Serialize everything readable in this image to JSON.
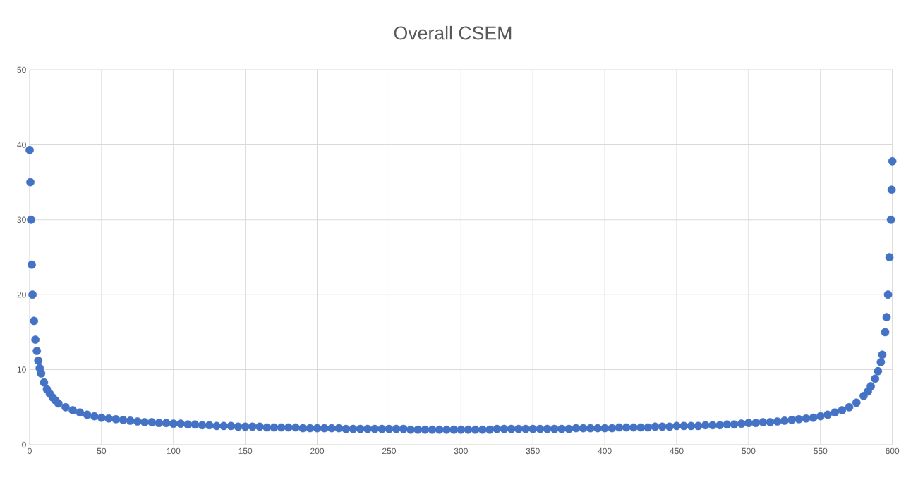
{
  "chart_data": {
    "type": "scatter",
    "title": "Overall CSEM",
    "x": [
      0,
      0.5,
      1,
      1.5,
      2,
      3,
      4,
      5,
      6,
      7,
      8,
      10,
      12,
      14,
      16,
      18,
      20,
      25,
      30,
      35,
      40,
      45,
      50,
      55,
      60,
      65,
      70,
      75,
      80,
      85,
      90,
      95,
      100,
      105,
      110,
      115,
      120,
      125,
      130,
      135,
      140,
      145,
      150,
      155,
      160,
      165,
      170,
      175,
      180,
      185,
      190,
      195,
      200,
      205,
      210,
      215,
      220,
      225,
      230,
      235,
      240,
      245,
      250,
      255,
      260,
      265,
      270,
      275,
      280,
      285,
      290,
      295,
      300,
      305,
      310,
      315,
      320,
      325,
      330,
      335,
      340,
      345,
      350,
      355,
      360,
      365,
      370,
      375,
      380,
      385,
      390,
      395,
      400,
      405,
      410,
      415,
      420,
      425,
      430,
      435,
      440,
      445,
      450,
      455,
      460,
      465,
      470,
      475,
      480,
      485,
      490,
      495,
      500,
      505,
      510,
      515,
      520,
      525,
      530,
      535,
      540,
      545,
      550,
      555,
      560,
      565,
      570,
      575,
      580,
      583,
      585,
      588,
      590,
      592,
      593,
      595,
      596,
      597,
      598,
      599,
      599.5,
      600
    ],
    "series": [
      {
        "color": "#4472c4",
        "values": [
          39.3,
          35,
          30,
          24,
          20,
          16.5,
          14,
          12.5,
          11.2,
          10.2,
          9.5,
          8.3,
          7.4,
          6.8,
          6.3,
          5.9,
          5.5,
          5.0,
          4.6,
          4.3,
          4.0,
          3.8,
          3.6,
          3.5,
          3.4,
          3.3,
          3.2,
          3.1,
          3.0,
          3.0,
          2.9,
          2.9,
          2.8,
          2.8,
          2.7,
          2.7,
          2.6,
          2.6,
          2.5,
          2.5,
          2.5,
          2.4,
          2.4,
          2.4,
          2.4,
          2.3,
          2.3,
          2.3,
          2.3,
          2.3,
          2.2,
          2.2,
          2.2,
          2.2,
          2.2,
          2.2,
          2.1,
          2.1,
          2.1,
          2.1,
          2.1,
          2.1,
          2.1,
          2.1,
          2.1,
          2.0,
          2.0,
          2.0,
          2.0,
          2.0,
          2.0,
          2.0,
          2.0,
          2.0,
          2.0,
          2.0,
          2.0,
          2.1,
          2.1,
          2.1,
          2.1,
          2.1,
          2.1,
          2.1,
          2.1,
          2.1,
          2.1,
          2.1,
          2.2,
          2.2,
          2.2,
          2.2,
          2.2,
          2.2,
          2.3,
          2.3,
          2.3,
          2.3,
          2.3,
          2.4,
          2.4,
          2.4,
          2.5,
          2.5,
          2.5,
          2.5,
          2.6,
          2.6,
          2.6,
          2.7,
          2.7,
          2.8,
          2.9,
          2.9,
          3.0,
          3.0,
          3.1,
          3.2,
          3.3,
          3.4,
          3.5,
          3.6,
          3.8,
          4.0,
          4.3,
          4.6,
          5.0,
          5.6,
          6.5,
          7.1,
          7.8,
          8.8,
          9.8,
          11,
          12,
          15,
          17,
          20,
          25,
          30,
          34,
          37.8
        ]
      }
    ],
    "xlim": [
      0,
      600
    ],
    "ylim": [
      0,
      50
    ],
    "xticks": [
      0,
      50,
      100,
      150,
      200,
      250,
      300,
      350,
      400,
      450,
      500,
      550,
      600
    ],
    "yticks": [
      0,
      10,
      20,
      30,
      40,
      50
    ],
    "grid": true,
    "marker": "circle"
  }
}
